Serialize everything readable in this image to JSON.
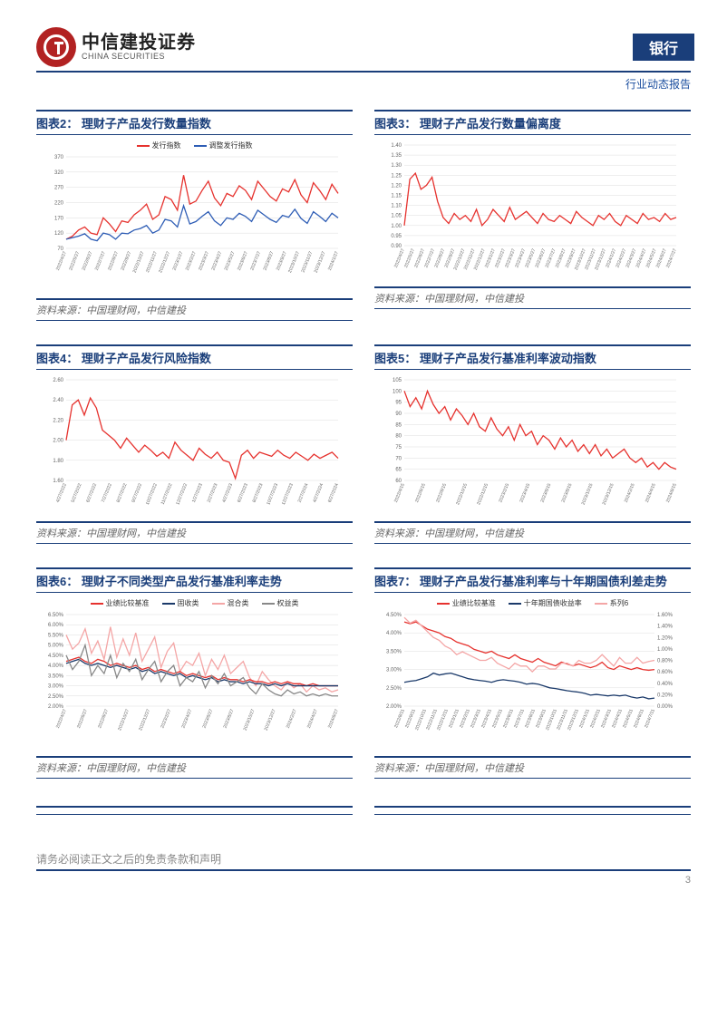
{
  "header": {
    "logo_cn": "中信建投证券",
    "logo_en": "CHINA SECURITIES",
    "sector": "银行",
    "report_type": "行业动态报告"
  },
  "source_text": "资料来源：中国理财网，中信建投",
  "footer_text": "请务必阅读正文之后的免责条款和声明",
  "page_num": "3",
  "colors": {
    "primary": "#1a3e7a",
    "red": "#e6322e",
    "blue": "#2e5db5",
    "navy": "#1b3a6a",
    "pink": "#f4a6a6",
    "gray": "#888888",
    "grid": "#dddddd",
    "bg": "#ffffff"
  },
  "charts": [
    {
      "id": "chart2",
      "title": "图表2：  理财子产品发行数量指数",
      "type": "line",
      "ylim": [
        70,
        370
      ],
      "ytick_step": 50,
      "x_labels": [
        "2022/4/27",
        "2022/5/27",
        "2022/6/27",
        "2022/7/27",
        "2022/8/27",
        "2022/9/27",
        "2022/10/27",
        "2022/11/27",
        "2022/12/27",
        "2023/1/27",
        "2023/2/27",
        "2023/3/27",
        "2023/4/27",
        "2023/5/27",
        "2023/6/27",
        "2023/7/27",
        "2023/8/27",
        "2023/9/27",
        "2023/10/27",
        "2023/11/27",
        "2023/12/27",
        "2024/1/27"
      ],
      "legend": [
        {
          "label": "发行指数",
          "color": "#e6322e"
        },
        {
          "label": "调整发行指数",
          "color": "#2e5db5"
        }
      ],
      "series": [
        {
          "color": "#e6322e",
          "values": [
            100,
            110,
            130,
            140,
            120,
            115,
            170,
            150,
            125,
            160,
            155,
            180,
            195,
            215,
            165,
            180,
            240,
            230,
            195,
            310,
            215,
            225,
            260,
            290,
            235,
            210,
            250,
            240,
            275,
            260,
            230,
            290,
            265,
            240,
            225,
            265,
            255,
            295,
            245,
            220,
            285,
            260,
            230,
            280,
            250
          ]
        },
        {
          "color": "#2e5db5",
          "values": [
            100,
            105,
            110,
            118,
            100,
            95,
            120,
            115,
            100,
            120,
            118,
            130,
            135,
            145,
            120,
            130,
            165,
            160,
            140,
            210,
            150,
            158,
            175,
            190,
            160,
            145,
            170,
            165,
            185,
            175,
            158,
            195,
            180,
            165,
            155,
            178,
            172,
            198,
            168,
            152,
            190,
            175,
            158,
            185,
            170
          ]
        }
      ]
    },
    {
      "id": "chart3",
      "title": "图表3：  理财子产品发行数量偏离度",
      "type": "line",
      "ylim": [
        0.9,
        1.4
      ],
      "ytick_step": 0.05,
      "x_labels": [
        "2022/4/27",
        "2022/5/27",
        "2022/6/27",
        "2022/7/27",
        "2022/8/27",
        "2022/9/27",
        "2022/10/27",
        "2022/11/27",
        "2022/12/27",
        "2023/1/27",
        "2023/2/27",
        "2023/3/27",
        "2023/4/27",
        "2023/5/27",
        "2023/6/27",
        "2023/7/27",
        "2023/8/27",
        "2023/9/27",
        "2023/10/27",
        "2023/11/27",
        "2023/12/27",
        "2024/1/27",
        "2024/2/27",
        "2024/3/27",
        "2024/4/27",
        "2024/5/27",
        "2024/6/27",
        "2024/7/27"
      ],
      "legend": [],
      "series": [
        {
          "color": "#e6322e",
          "values": [
            1.0,
            1.23,
            1.26,
            1.18,
            1.2,
            1.24,
            1.12,
            1.04,
            1.01,
            1.06,
            1.03,
            1.05,
            1.02,
            1.08,
            1.0,
            1.03,
            1.08,
            1.05,
            1.02,
            1.09,
            1.03,
            1.05,
            1.07,
            1.04,
            1.01,
            1.06,
            1.03,
            1.02,
            1.05,
            1.03,
            1.01,
            1.07,
            1.04,
            1.02,
            1.0,
            1.05,
            1.03,
            1.06,
            1.02,
            1.0,
            1.05,
            1.03,
            1.01,
            1.06,
            1.03,
            1.04,
            1.02,
            1.06,
            1.03,
            1.04
          ]
        }
      ]
    },
    {
      "id": "chart4",
      "title": "图表4：  理财子产品发行风险指数",
      "type": "line",
      "ylim": [
        1.6,
        2.6
      ],
      "ytick_step": 0.2,
      "x_labels": [
        "4/27/2022",
        "5/27/2022",
        "6/27/2022",
        "7/27/2022",
        "8/27/2022",
        "9/27/2022",
        "10/27/2022",
        "11/27/2022",
        "12/27/2022",
        "1/27/2023",
        "2/27/2023",
        "4/27/2023",
        "6/27/2023",
        "8/27/2023",
        "10/27/2023",
        "12/27/2023",
        "2/27/2024",
        "4/27/2024",
        "6/27/2024"
      ],
      "legend": [],
      "series": [
        {
          "color": "#e6322e",
          "values": [
            2.0,
            2.35,
            2.4,
            2.25,
            2.42,
            2.32,
            2.1,
            2.05,
            2.0,
            1.92,
            2.02,
            1.95,
            1.88,
            1.95,
            1.9,
            1.84,
            1.88,
            1.82,
            1.98,
            1.9,
            1.85,
            1.8,
            1.92,
            1.86,
            1.82,
            1.88,
            1.8,
            1.78,
            1.62,
            1.85,
            1.9,
            1.82,
            1.88,
            1.86,
            1.84,
            1.9,
            1.85,
            1.82,
            1.88,
            1.84,
            1.8,
            1.86,
            1.82,
            1.85,
            1.88,
            1.82
          ]
        }
      ]
    },
    {
      "id": "chart5",
      "title": "图表5：  理财子产品发行基准利率波动指数",
      "type": "line",
      "ylim": [
        60,
        105
      ],
      "ytick_step": 5,
      "x_labels": [
        "2022/4/15",
        "2022/6/15",
        "2022/8/15",
        "2022/10/15",
        "2022/12/15",
        "2023/2/15",
        "2023/4/15",
        "2023/6/15",
        "2023/8/15",
        "2023/10/15",
        "2023/12/15",
        "2024/2/15",
        "2024/4/15",
        "2024/6/15"
      ],
      "legend": [],
      "series": [
        {
          "color": "#e6322e",
          "values": [
            100,
            93,
            97,
            92,
            100,
            94,
            90,
            93,
            87,
            92,
            89,
            85,
            90,
            84,
            82,
            88,
            83,
            80,
            84,
            78,
            85,
            80,
            82,
            76,
            80,
            78,
            74,
            79,
            75,
            78,
            73,
            76,
            72,
            76,
            71,
            74,
            70,
            72,
            74,
            70,
            68,
            70,
            66,
            68,
            65,
            68,
            66,
            65
          ]
        }
      ]
    },
    {
      "id": "chart6",
      "title": "图表6：  理财子不同类型产品发行基准利率走势",
      "type": "line",
      "ylim": [
        2.0,
        6.5
      ],
      "ytick_step": 0.5,
      "y_suffix": "%",
      "x_labels": [
        "2022/4/27",
        "2022/6/27",
        "2022/8/27",
        "2022/10/27",
        "2022/12/27",
        "2023/2/27",
        "2023/4/27",
        "2023/6/27",
        "2023/8/27",
        "2023/10/27",
        "2023/12/27",
        "2024/2/27",
        "2024/4/27",
        "2024/6/27"
      ],
      "legend": [
        {
          "label": "业绩比较基准",
          "color": "#e6322e"
        },
        {
          "label": "固收类",
          "color": "#1b3a6a"
        },
        {
          "label": "混合类",
          "color": "#f4a6a6"
        },
        {
          "label": "权益类",
          "color": "#888888"
        }
      ],
      "series": [
        {
          "color": "#f4a6a6",
          "values": [
            5.5,
            4.8,
            5.1,
            5.8,
            4.6,
            5.2,
            4.3,
            5.9,
            4.4,
            5.3,
            4.5,
            5.6,
            4.2,
            4.8,
            5.4,
            3.9,
            4.7,
            5.1,
            3.7,
            4.2,
            4.0,
            4.6,
            3.5,
            4.3,
            3.8,
            4.5,
            3.6,
            3.9,
            4.2,
            3.4,
            3.0,
            3.7,
            3.3,
            3.0,
            2.8,
            3.2,
            2.9,
            3.1,
            2.7,
            3.0,
            2.8,
            2.9,
            2.7,
            2.8
          ]
        },
        {
          "color": "#e6322e",
          "values": [
            4.2,
            4.3,
            4.4,
            4.2,
            4.1,
            4.3,
            4.2,
            4.0,
            4.1,
            4.0,
            3.9,
            4.0,
            3.8,
            3.9,
            3.7,
            3.8,
            3.7,
            3.6,
            3.7,
            3.5,
            3.6,
            3.5,
            3.4,
            3.5,
            3.3,
            3.4,
            3.3,
            3.3,
            3.2,
            3.3,
            3.2,
            3.2,
            3.1,
            3.2,
            3.1,
            3.2,
            3.1,
            3.1,
            3.0,
            3.1,
            3.0,
            3.0,
            3.0,
            3.0
          ]
        },
        {
          "color": "#1b3a6a",
          "values": [
            4.1,
            4.2,
            4.3,
            4.1,
            4.0,
            4.1,
            4.0,
            3.9,
            4.0,
            3.9,
            3.8,
            3.9,
            3.7,
            3.8,
            3.6,
            3.7,
            3.6,
            3.5,
            3.6,
            3.4,
            3.5,
            3.4,
            3.3,
            3.4,
            3.2,
            3.3,
            3.2,
            3.2,
            3.1,
            3.2,
            3.1,
            3.1,
            3.0,
            3.1,
            3.0,
            3.1,
            3.0,
            3.0,
            3.0,
            3.0,
            3.0,
            3.0,
            3.0,
            3.0
          ]
        },
        {
          "color": "#888888",
          "values": [
            4.5,
            3.8,
            4.2,
            5.0,
            3.5,
            4.0,
            3.6,
            4.5,
            3.4,
            4.1,
            3.7,
            4.3,
            3.3,
            3.8,
            4.2,
            3.2,
            3.7,
            4.0,
            3.0,
            3.4,
            3.2,
            3.7,
            2.9,
            3.5,
            3.1,
            3.6,
            3.0,
            3.2,
            3.4,
            2.9,
            2.6,
            3.1,
            2.8,
            2.6,
            2.5,
            2.8,
            2.6,
            2.7,
            2.5,
            2.6,
            2.5,
            2.6,
            2.5,
            2.5
          ]
        }
      ]
    },
    {
      "id": "chart7",
      "title": "图表7：  理财子产品发行基准利率与十年期国债利差走势",
      "type": "line-dual",
      "ylim": [
        2.0,
        4.5
      ],
      "ytick_step": 0.5,
      "y_suffix": "%",
      "ylim2": [
        0.0,
        1.6
      ],
      "ytick2_step": 0.2,
      "y2_suffix": "%",
      "x_labels": [
        "2022/8/11",
        "2022/9/11",
        "2022/10/11",
        "2022/11/11",
        "2022/12/11",
        "2023/1/11",
        "2023/2/11",
        "2023/3/11",
        "2023/4/11",
        "2023/5/11",
        "2023/6/11",
        "2023/7/11",
        "2023/8/11",
        "2023/9/11",
        "2023/10/11",
        "2023/11/11",
        "2023/12/11",
        "2024/1/11",
        "2024/2/11",
        "2024/3/11",
        "2024/4/11",
        "2024/5/11",
        "2024/6/11",
        "2024/7/11"
      ],
      "legend": [
        {
          "label": "业绩比较基准",
          "color": "#e6322e"
        },
        {
          "label": "十年期国债收益率",
          "color": "#1b3a6a"
        },
        {
          "label": "系列6",
          "color": "#f4a6a6"
        }
      ],
      "series": [
        {
          "color": "#e6322e",
          "axis": 1,
          "values": [
            4.3,
            4.25,
            4.3,
            4.2,
            4.1,
            4.05,
            4.0,
            3.9,
            3.85,
            3.75,
            3.7,
            3.65,
            3.55,
            3.5,
            3.45,
            3.5,
            3.4,
            3.35,
            3.3,
            3.4,
            3.3,
            3.25,
            3.2,
            3.3,
            3.2,
            3.15,
            3.1,
            3.2,
            3.15,
            3.1,
            3.15,
            3.1,
            3.05,
            3.1,
            3.2,
            3.05,
            3.0,
            3.1,
            3.05,
            3.0,
            3.05,
            3.0,
            2.98,
            3.0
          ]
        },
        {
          "color": "#1b3a6a",
          "axis": 1,
          "values": [
            2.65,
            2.68,
            2.7,
            2.75,
            2.8,
            2.9,
            2.85,
            2.88,
            2.9,
            2.85,
            2.8,
            2.75,
            2.72,
            2.7,
            2.68,
            2.65,
            2.7,
            2.72,
            2.7,
            2.68,
            2.65,
            2.6,
            2.62,
            2.6,
            2.55,
            2.5,
            2.48,
            2.45,
            2.42,
            2.4,
            2.38,
            2.35,
            2.3,
            2.32,
            2.3,
            2.28,
            2.3,
            2.28,
            2.3,
            2.25,
            2.22,
            2.25,
            2.2,
            2.22
          ]
        },
        {
          "color": "#f4a6a6",
          "axis": 2,
          "values": [
            1.55,
            1.45,
            1.5,
            1.4,
            1.3,
            1.2,
            1.15,
            1.05,
            1.0,
            0.9,
            0.95,
            0.9,
            0.85,
            0.8,
            0.8,
            0.85,
            0.75,
            0.7,
            0.65,
            0.75,
            0.7,
            0.7,
            0.6,
            0.7,
            0.7,
            0.65,
            0.65,
            0.75,
            0.75,
            0.7,
            0.8,
            0.75,
            0.75,
            0.8,
            0.9,
            0.8,
            0.7,
            0.85,
            0.75,
            0.75,
            0.85,
            0.75,
            0.78,
            0.8
          ]
        }
      ]
    }
  ]
}
